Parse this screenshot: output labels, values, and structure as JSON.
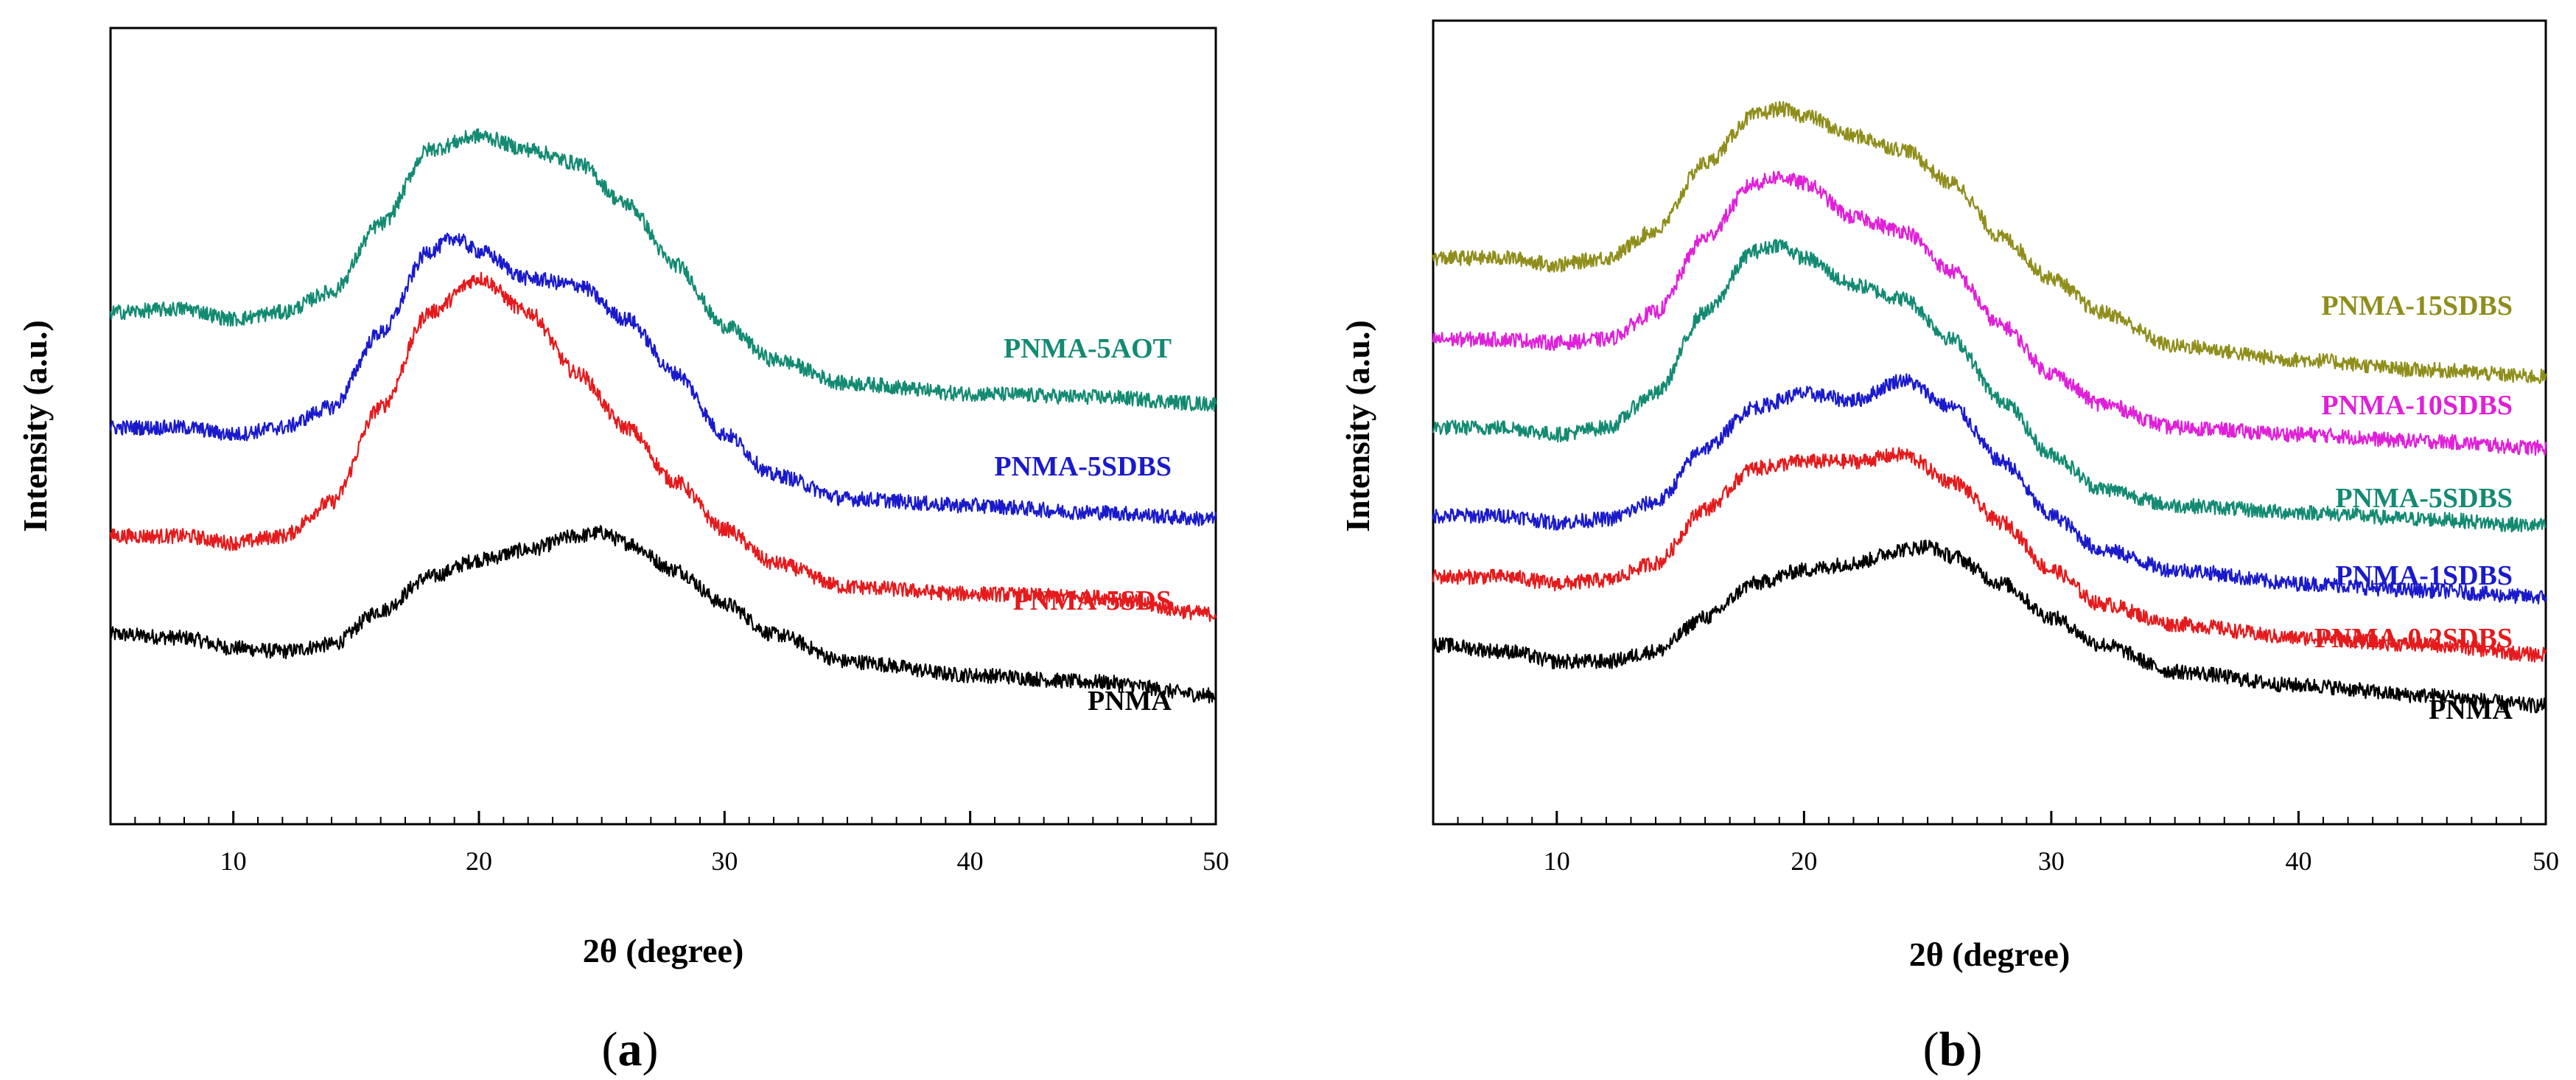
{
  "chart_data": [
    {
      "panel": "a",
      "panel_label": "(a)",
      "panel_label_open": "(",
      "panel_label_letter": "a",
      "panel_label_close": ")",
      "type": "line",
      "title": "",
      "xlabel": "2θ (degree)",
      "ylabel": "Intensity (a.u.)",
      "xlim": [
        5,
        50
      ],
      "ylim": [
        0,
        1
      ],
      "xticks": [
        10,
        20,
        30,
        40,
        50
      ],
      "xtick_labels": [
        "10",
        "20",
        "30",
        "40",
        "50"
      ],
      "grid": false,
      "series": [
        {
          "name": "PNMA",
          "color": "#000000",
          "x": [
            5,
            8,
            10,
            12,
            14,
            16,
            18,
            20,
            22,
            24,
            25,
            26,
            28,
            30,
            32,
            35,
            40,
            45,
            50
          ],
          "values": [
            0.195,
            0.19,
            0.175,
            0.17,
            0.18,
            0.23,
            0.28,
            0.305,
            0.32,
            0.34,
            0.345,
            0.33,
            0.29,
            0.24,
            0.195,
            0.155,
            0.135,
            0.125,
            0.105
          ]
        },
        {
          "name": "PNMA-5SDS",
          "color": "#e41a1c",
          "x": [
            5,
            8,
            10,
            12,
            14,
            16,
            18,
            20,
            22,
            24,
            26,
            28,
            30,
            32,
            35,
            40,
            45,
            50
          ],
          "values": [
            0.34,
            0.34,
            0.33,
            0.34,
            0.39,
            0.53,
            0.67,
            0.72,
            0.67,
            0.58,
            0.5,
            0.42,
            0.35,
            0.3,
            0.265,
            0.255,
            0.25,
            0.225
          ]
        },
        {
          "name": "PNMA-5SDBS",
          "color": "#1a1acc",
          "x": [
            5,
            8,
            10,
            12,
            14,
            16,
            18,
            19,
            20,
            22,
            24,
            26,
            28,
            30,
            32,
            35,
            40,
            45,
            50
          ],
          "values": [
            0.5,
            0.5,
            0.49,
            0.5,
            0.53,
            0.64,
            0.76,
            0.78,
            0.76,
            0.72,
            0.71,
            0.66,
            0.58,
            0.49,
            0.43,
            0.395,
            0.385,
            0.375,
            0.365
          ]
        },
        {
          "name": "PNMA-5AOT",
          "color": "#138a72",
          "x": [
            5,
            8,
            10,
            12,
            14,
            16,
            18,
            20,
            22,
            24,
            26,
            28,
            30,
            32,
            35,
            40,
            45,
            50
          ],
          "values": [
            0.67,
            0.675,
            0.66,
            0.67,
            0.7,
            0.8,
            0.91,
            0.93,
            0.91,
            0.89,
            0.83,
            0.74,
            0.65,
            0.6,
            0.565,
            0.55,
            0.545,
            0.535
          ]
        }
      ],
      "legend_placement": "labels right of each curve"
    },
    {
      "panel": "b",
      "panel_label": "(b)",
      "panel_label_open": "(",
      "panel_label_letter": "b",
      "panel_label_close": ")",
      "type": "line",
      "title": "",
      "xlabel": "2θ (degree)",
      "ylabel": "Intensity (a.u.)",
      "xlim": [
        5,
        50
      ],
      "ylim": [
        0,
        1
      ],
      "xticks": [
        10,
        20,
        30,
        40,
        50
      ],
      "xtick_labels": [
        "10",
        "20",
        "30",
        "40",
        "50"
      ],
      "grid": false,
      "series": [
        {
          "name": "PNMA",
          "color": "#000000",
          "x": [
            5,
            8,
            10,
            12,
            14,
            16,
            18,
            20,
            22,
            24,
            25,
            26,
            28,
            30,
            32,
            35,
            40,
            45,
            50
          ],
          "values": [
            0.18,
            0.17,
            0.155,
            0.155,
            0.17,
            0.22,
            0.27,
            0.29,
            0.3,
            0.32,
            0.325,
            0.31,
            0.27,
            0.22,
            0.18,
            0.14,
            0.12,
            0.105,
            0.09
          ]
        },
        {
          "name": "PNMA-0.2SDBS",
          "color": "#e41a1c",
          "x": [
            5,
            8,
            10,
            12,
            14,
            16,
            18,
            20,
            22,
            24,
            26,
            28,
            30,
            32,
            35,
            40,
            45,
            50
          ],
          "values": [
            0.28,
            0.28,
            0.27,
            0.275,
            0.3,
            0.38,
            0.44,
            0.45,
            0.45,
            0.46,
            0.42,
            0.36,
            0.29,
            0.24,
            0.21,
            0.19,
            0.18,
            0.165
          ]
        },
        {
          "name": "PNMA-1SDBS",
          "color": "#1a1acc",
          "x": [
            5,
            8,
            10,
            12,
            14,
            16,
            18,
            20,
            22,
            24,
            26,
            28,
            30,
            32,
            35,
            40,
            45,
            50
          ],
          "values": [
            0.37,
            0.37,
            0.36,
            0.365,
            0.39,
            0.47,
            0.53,
            0.55,
            0.54,
            0.57,
            0.53,
            0.45,
            0.37,
            0.32,
            0.29,
            0.27,
            0.26,
            0.25
          ]
        },
        {
          "name": "PNMA-5SDBS",
          "color": "#138a72",
          "x": [
            5,
            8,
            10,
            12,
            14,
            16,
            18,
            19,
            20,
            22,
            24,
            26,
            28,
            30,
            32,
            35,
            40,
            45,
            50
          ],
          "values": [
            0.5,
            0.5,
            0.49,
            0.5,
            0.55,
            0.67,
            0.76,
            0.77,
            0.75,
            0.71,
            0.69,
            0.63,
            0.54,
            0.46,
            0.41,
            0.385,
            0.375,
            0.365,
            0.355
          ]
        },
        {
          "name": "PNMA-10SDBS",
          "color": "#e020d8",
          "x": [
            5,
            8,
            10,
            12,
            14,
            16,
            18,
            19,
            20,
            22,
            24,
            26,
            28,
            30,
            32,
            35,
            40,
            45,
            50
          ],
          "values": [
            0.63,
            0.63,
            0.625,
            0.63,
            0.67,
            0.78,
            0.86,
            0.87,
            0.86,
            0.81,
            0.79,
            0.73,
            0.65,
            0.58,
            0.535,
            0.5,
            0.49,
            0.48,
            0.47
          ]
        },
        {
          "name": "PNMA-15SDBS",
          "color": "#8f8e1c",
          "x": [
            5,
            8,
            10,
            12,
            14,
            16,
            18,
            19,
            20,
            22,
            24,
            26,
            28,
            30,
            32,
            35,
            40,
            45,
            50
          ],
          "values": [
            0.75,
            0.75,
            0.74,
            0.75,
            0.79,
            0.89,
            0.96,
            0.97,
            0.96,
            0.93,
            0.91,
            0.86,
            0.78,
            0.72,
            0.67,
            0.62,
            0.6,
            0.585,
            0.575
          ]
        }
      ],
      "legend_placement": "labels right of each curve"
    }
  ]
}
